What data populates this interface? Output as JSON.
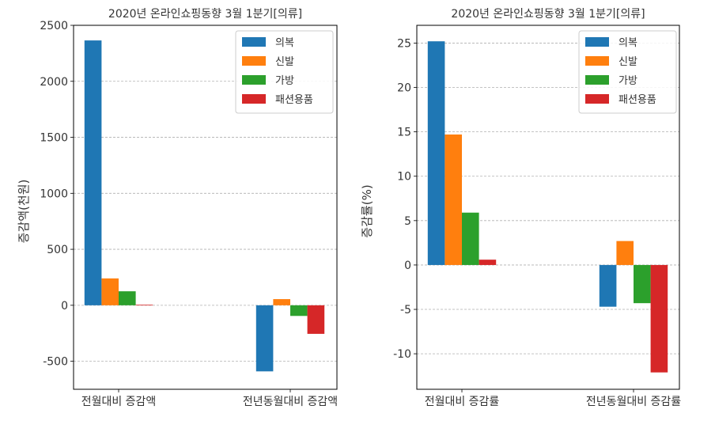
{
  "chart_data": [
    {
      "type": "bar",
      "title": "2020년 온라인쇼핑동향 3월 1분기[의류]",
      "xlabel": "",
      "ylabel": "증감액(천원)",
      "categories": [
        "전월대비 증감액",
        "전년동월대비 증감액"
      ],
      "series": [
        {
          "name": "의복",
          "color": "#1f77b4",
          "values": [
            2365,
            -590
          ]
        },
        {
          "name": "신발",
          "color": "#ff7f0e",
          "values": [
            240,
            55
          ]
        },
        {
          "name": "가방",
          "color": "#2ca02c",
          "values": [
            125,
            -95
          ]
        },
        {
          "name": "패션용품",
          "color": "#d62728",
          "values": [
            5,
            -255
          ]
        }
      ],
      "ylim": [
        -750,
        2500
      ],
      "yticks": [
        -500,
        0,
        500,
        1000,
        1500,
        2000,
        2500
      ],
      "ytick_labels": [
        "-500",
        "0",
        "500",
        "1000",
        "1500",
        "2000",
        "2500"
      ],
      "grid": "y-dashed",
      "legend": "top-right"
    },
    {
      "type": "bar",
      "title": "2020년 온라인쇼핑동향 3월 1분기[의류]",
      "xlabel": "",
      "ylabel": "증감률(%)",
      "categories": [
        "전월대비 증감률",
        "전년동월대비 증감률"
      ],
      "series": [
        {
          "name": "의복",
          "color": "#1f77b4",
          "values": [
            25.2,
            -4.7
          ]
        },
        {
          "name": "신발",
          "color": "#ff7f0e",
          "values": [
            14.7,
            2.7
          ]
        },
        {
          "name": "가방",
          "color": "#2ca02c",
          "values": [
            5.9,
            -4.3
          ]
        },
        {
          "name": "패션용품",
          "color": "#d62728",
          "values": [
            0.6,
            -12.1
          ]
        }
      ],
      "ylim": [
        -14,
        27
      ],
      "yticks": [
        -10,
        -5,
        0,
        5,
        10,
        15,
        20,
        25
      ],
      "ytick_labels": [
        "-10",
        "-5",
        "0",
        "5",
        "10",
        "15",
        "20",
        "25"
      ],
      "grid": "y-dashed",
      "legend": "top-right"
    }
  ]
}
